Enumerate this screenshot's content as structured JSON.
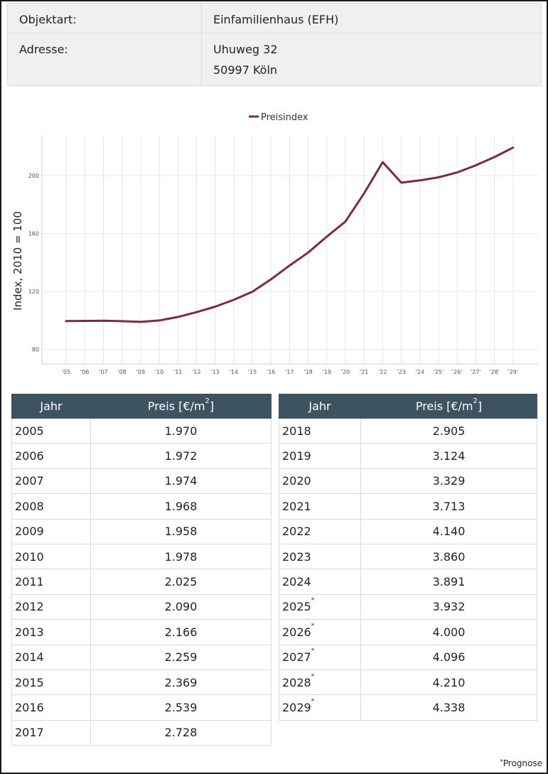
{
  "info": {
    "objektart_label": "Objektart:",
    "objektart_value": "Einfamilienhaus (EFH)",
    "adresse_label": "Adresse:",
    "adresse_line1": "Uhuweg 32",
    "adresse_line2": "50997 Köln"
  },
  "chart_data": {
    "type": "line",
    "title": "",
    "ylabel": "Index, 2010 = 100",
    "xlabel": "",
    "ylim": [
      70,
      228
    ],
    "yticks": [
      80,
      120,
      160,
      200
    ],
    "grid": true,
    "legend_placement": "top-center",
    "categories": [
      "'05",
      "'06",
      "'07",
      "'08",
      "'09",
      "'10",
      "'11",
      "'12",
      "'13",
      "'14",
      "'15",
      "'16",
      "'17",
      "'18",
      "'19",
      "'20",
      "'21",
      "'22",
      "'23",
      "'24",
      "'25'",
      "'26'",
      "'27'",
      "'28'",
      "'29'"
    ],
    "series": [
      {
        "name": "Preisindex",
        "color": "#7b2a47",
        "values": [
          99.6,
          99.7,
          99.8,
          99.5,
          99.0,
          100.0,
          102.4,
          105.7,
          109.5,
          114.2,
          119.8,
          128.4,
          137.9,
          146.9,
          157.9,
          168.3,
          187.7,
          209.3,
          195.1,
          196.7,
          198.8,
          202.2,
          207.1,
          212.8,
          219.3
        ]
      }
    ]
  },
  "table": {
    "col_jahr": "Jahr",
    "col_preis": "Preis [€/m",
    "col_preis_sup": "2",
    "col_preis_end": "]",
    "left_rows": [
      {
        "year": "2005",
        "mark": "",
        "price": "1.970"
      },
      {
        "year": "2006",
        "mark": "",
        "price": "1.972"
      },
      {
        "year": "2007",
        "mark": "",
        "price": "1.974"
      },
      {
        "year": "2008",
        "mark": "",
        "price": "1.968"
      },
      {
        "year": "2009",
        "mark": "",
        "price": "1.958"
      },
      {
        "year": "2010",
        "mark": "",
        "price": "1.978"
      },
      {
        "year": "2011",
        "mark": "",
        "price": "2.025"
      },
      {
        "year": "2012",
        "mark": "",
        "price": "2.090"
      },
      {
        "year": "2013",
        "mark": "",
        "price": "2.166"
      },
      {
        "year": "2014",
        "mark": "",
        "price": "2.259"
      },
      {
        "year": "2015",
        "mark": "",
        "price": "2.369"
      },
      {
        "year": "2016",
        "mark": "",
        "price": "2.539"
      },
      {
        "year": "2017",
        "mark": "",
        "price": "2.728"
      }
    ],
    "right_rows": [
      {
        "year": "2018",
        "mark": "",
        "price": "2.905"
      },
      {
        "year": "2019",
        "mark": "",
        "price": "3.124"
      },
      {
        "year": "2020",
        "mark": "",
        "price": "3.329"
      },
      {
        "year": "2021",
        "mark": "",
        "price": "3.713"
      },
      {
        "year": "2022",
        "mark": "",
        "price": "4.140"
      },
      {
        "year": "2023",
        "mark": "",
        "price": "3.860"
      },
      {
        "year": "2024",
        "mark": "",
        "price": "3.891"
      },
      {
        "year": "2025",
        "mark": "*",
        "price": "3.932"
      },
      {
        "year": "2026",
        "mark": "*",
        "price": "4.000"
      },
      {
        "year": "2027",
        "mark": "*",
        "price": "4.096"
      },
      {
        "year": "2028",
        "mark": "*",
        "price": "4.210"
      },
      {
        "year": "2029",
        "mark": "*",
        "price": "4.338"
      }
    ]
  },
  "footnote": {
    "mark": "*",
    "text": "Prognose"
  }
}
